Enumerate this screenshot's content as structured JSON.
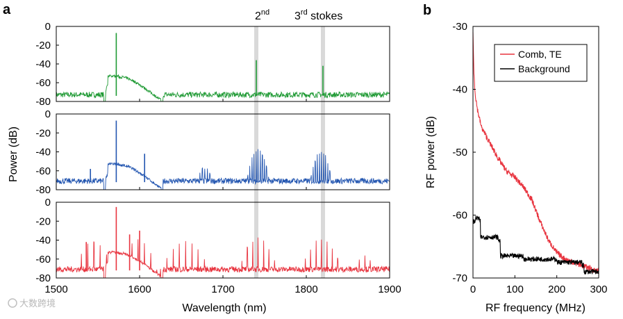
{
  "chart_data": [
    {
      "type": "line",
      "panel": "a",
      "xlabel": "Wavelength (nm)",
      "ylabel": "Power (dB)",
      "xlim": [
        1500,
        1900
      ],
      "ylim": [
        -80,
        0
      ],
      "xticks": [
        1500,
        1600,
        1700,
        1800,
        1900
      ],
      "yticks": [
        0,
        -20,
        -40,
        -60,
        -80
      ],
      "annotations": {
        "second": "2",
        "second_sup": "nd",
        "third": "3",
        "third_sup": "rd",
        "stokes_word": "stokes"
      },
      "highlight_bands_nm": [
        1740,
        1820
      ],
      "subplots": [
        {
          "name": "top",
          "color": "#1f9a34",
          "noise_floor": -74,
          "pump_band": [
            1557,
            1628
          ],
          "lines": [
            {
              "x": 1572,
              "y": -7
            },
            {
              "x": 1740,
              "y": -36
            },
            {
              "x": 1820,
              "y": -42
            }
          ],
          "humps": []
        },
        {
          "name": "middle",
          "color": "#2255b0",
          "noise_floor": -72,
          "pump_band": [
            1557,
            1628
          ],
          "lines": [
            {
              "x": 1572,
              "y": -7
            },
            {
              "x": 1541,
              "y": -58
            },
            {
              "x": 1606,
              "y": -42
            }
          ],
          "humps": [
            {
              "center": 1678,
              "peak": -57,
              "width": 14,
              "spacing": 3.0
            },
            {
              "center": 1742,
              "peak": -38,
              "width": 13,
              "spacing": 2.5
            },
            {
              "center": 1818,
              "peak": -40,
              "width": 13,
              "spacing": 2.5
            }
          ]
        },
        {
          "name": "bottom",
          "color": "#e8343f",
          "noise_floor": -72,
          "pump_band": [
            1557,
            1628
          ],
          "lines": [
            {
              "x": 1572,
              "y": -5
            },
            {
              "x": 1536,
              "y": -42
            },
            {
              "x": 1588,
              "y": -34
            },
            {
              "x": 1600,
              "y": -30
            }
          ],
          "humps": [
            {
              "center": 1545,
              "peak": -42,
              "width": 22,
              "spacing": 7.5
            },
            {
              "center": 1598,
              "peak": -40,
              "width": 22,
              "spacing": 7.5
            },
            {
              "center": 1655,
              "peak": -42,
              "width": 30,
              "spacing": 7.5
            },
            {
              "center": 1742,
              "peak": -38,
              "width": 22,
              "spacing": 6.5
            },
            {
              "center": 1818,
              "peak": -40,
              "width": 24,
              "spacing": 6.5
            },
            {
              "center": 1870,
              "peak": -55,
              "width": 14,
              "spacing": 6.5
            }
          ]
        }
      ]
    },
    {
      "type": "line",
      "panel": "b",
      "xlabel": "RF frequency (MHz)",
      "ylabel": "RF power (dB)",
      "xlim": [
        0,
        300
      ],
      "ylim": [
        -70,
        -30
      ],
      "xticks": [
        0,
        100,
        200,
        300
      ],
      "yticks": [
        -30,
        -40,
        -50,
        -60,
        -70
      ],
      "legend": {
        "position": "top-right"
      },
      "series": [
        {
          "name": "Comb, TE",
          "color": "#e8343f",
          "x": [
            0,
            2,
            5,
            10,
            20,
            40,
            60,
            80,
            100,
            120,
            140,
            160,
            180,
            200,
            220,
            240,
            260,
            280,
            300
          ],
          "values": [
            -31,
            -37,
            -40.5,
            -43,
            -46,
            -48.5,
            -51,
            -53,
            -54,
            -55.5,
            -57.5,
            -61,
            -64,
            -66,
            -67,
            -67.5,
            -68,
            -68.5,
            -69
          ]
        },
        {
          "name": "Background",
          "color": "#000000",
          "x": [
            0,
            5,
            15,
            18,
            25,
            60,
            65,
            120,
            200,
            260,
            265,
            300
          ],
          "values": [
            -61,
            -60.5,
            -61,
            -63.5,
            -63.5,
            -64,
            -66.5,
            -67,
            -67.5,
            -68,
            -69,
            -69.5
          ]
        }
      ]
    }
  ],
  "watermark": "大数跨境"
}
